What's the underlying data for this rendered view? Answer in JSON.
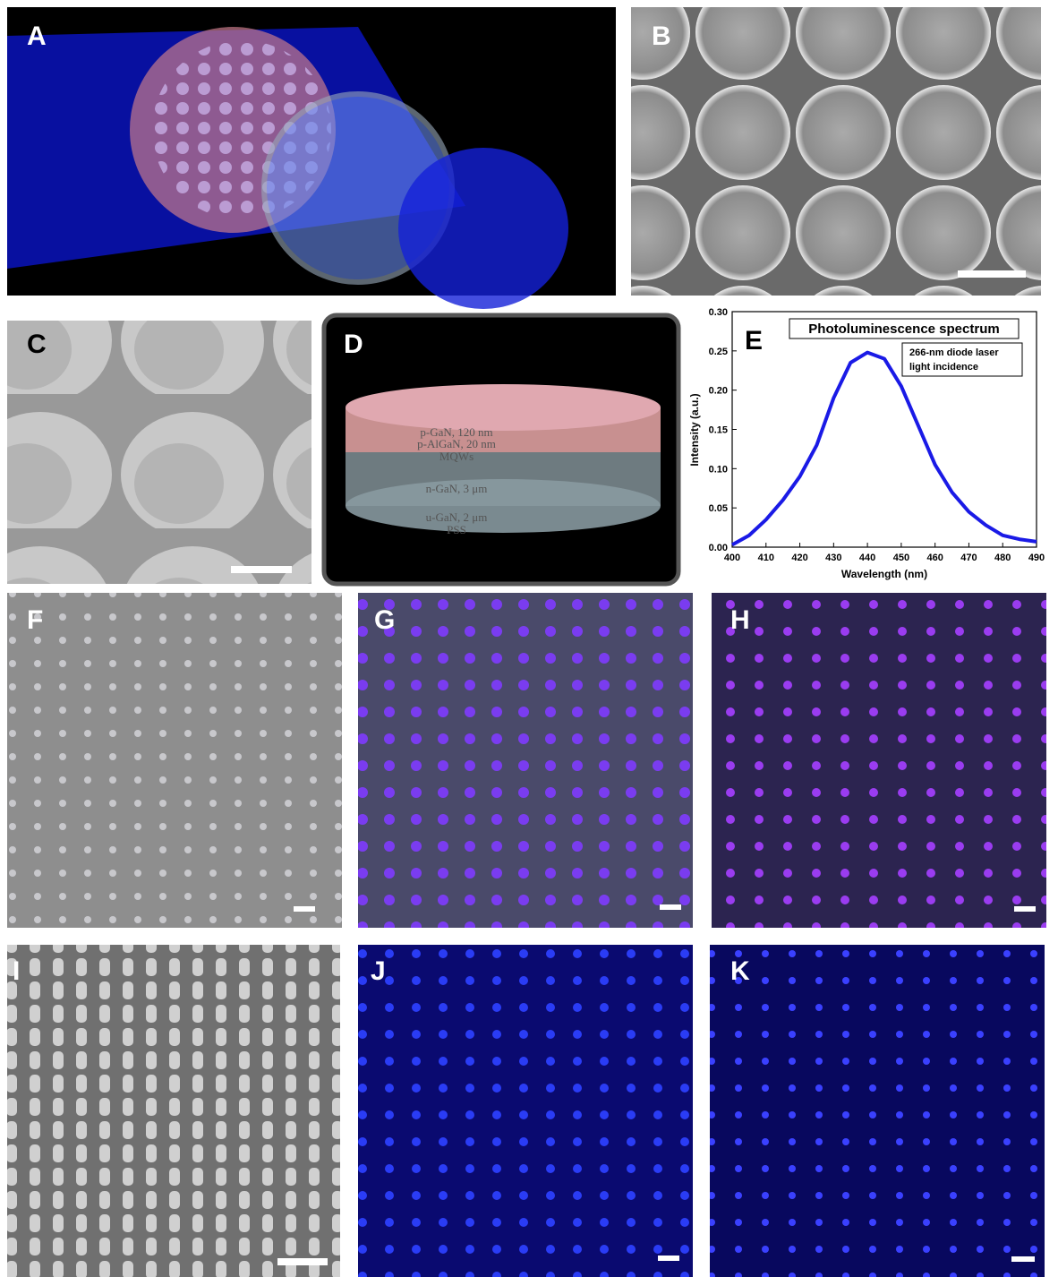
{
  "panel_labels": [
    "A",
    "B",
    "C",
    "D",
    "E",
    "F",
    "G",
    "H",
    "I",
    "J",
    "K"
  ],
  "layer_labels": [
    "p-GaN, 120 nm",
    "p-AlGaN, 20 nm",
    "MQWs",
    "n-GaN, 3 μm",
    "u-GaN, 2 μm",
    "PSS"
  ],
  "chart_data": {
    "type": "line",
    "title": "Photoluminescence spectrum",
    "annotation": [
      "266-nm diode laser",
      "light incidence"
    ],
    "x_label": "Wavelength (nm)",
    "y_label": "Intensity (a.u.)",
    "x": [
      400,
      405,
      410,
      415,
      420,
      425,
      430,
      435,
      440,
      445,
      450,
      455,
      460,
      465,
      470,
      475,
      480,
      485,
      490
    ],
    "values": [
      0.003,
      0.015,
      0.035,
      0.06,
      0.09,
      0.13,
      0.19,
      0.235,
      0.248,
      0.24,
      0.205,
      0.155,
      0.105,
      0.07,
      0.045,
      0.028,
      0.015,
      0.01,
      0.007
    ],
    "color": "#1a1ae6",
    "xlim": [
      400,
      490
    ],
    "xticks": [
      400,
      410,
      420,
      430,
      440,
      450,
      460,
      470,
      480,
      490
    ],
    "ylim": [
      0,
      0.3
    ],
    "yticks": [
      {
        "value": 0,
        "label": "0.00"
      },
      {
        "value": 0.05,
        "label": "0.05"
      },
      {
        "value": 0.1,
        "label": "0.10"
      },
      {
        "value": 0.15,
        "label": "0.15"
      },
      {
        "value": 0.2,
        "label": "0.20"
      },
      {
        "value": 0.25,
        "label": "0.25"
      },
      {
        "value": 0.3,
        "label": "0.30"
      }
    ]
  }
}
